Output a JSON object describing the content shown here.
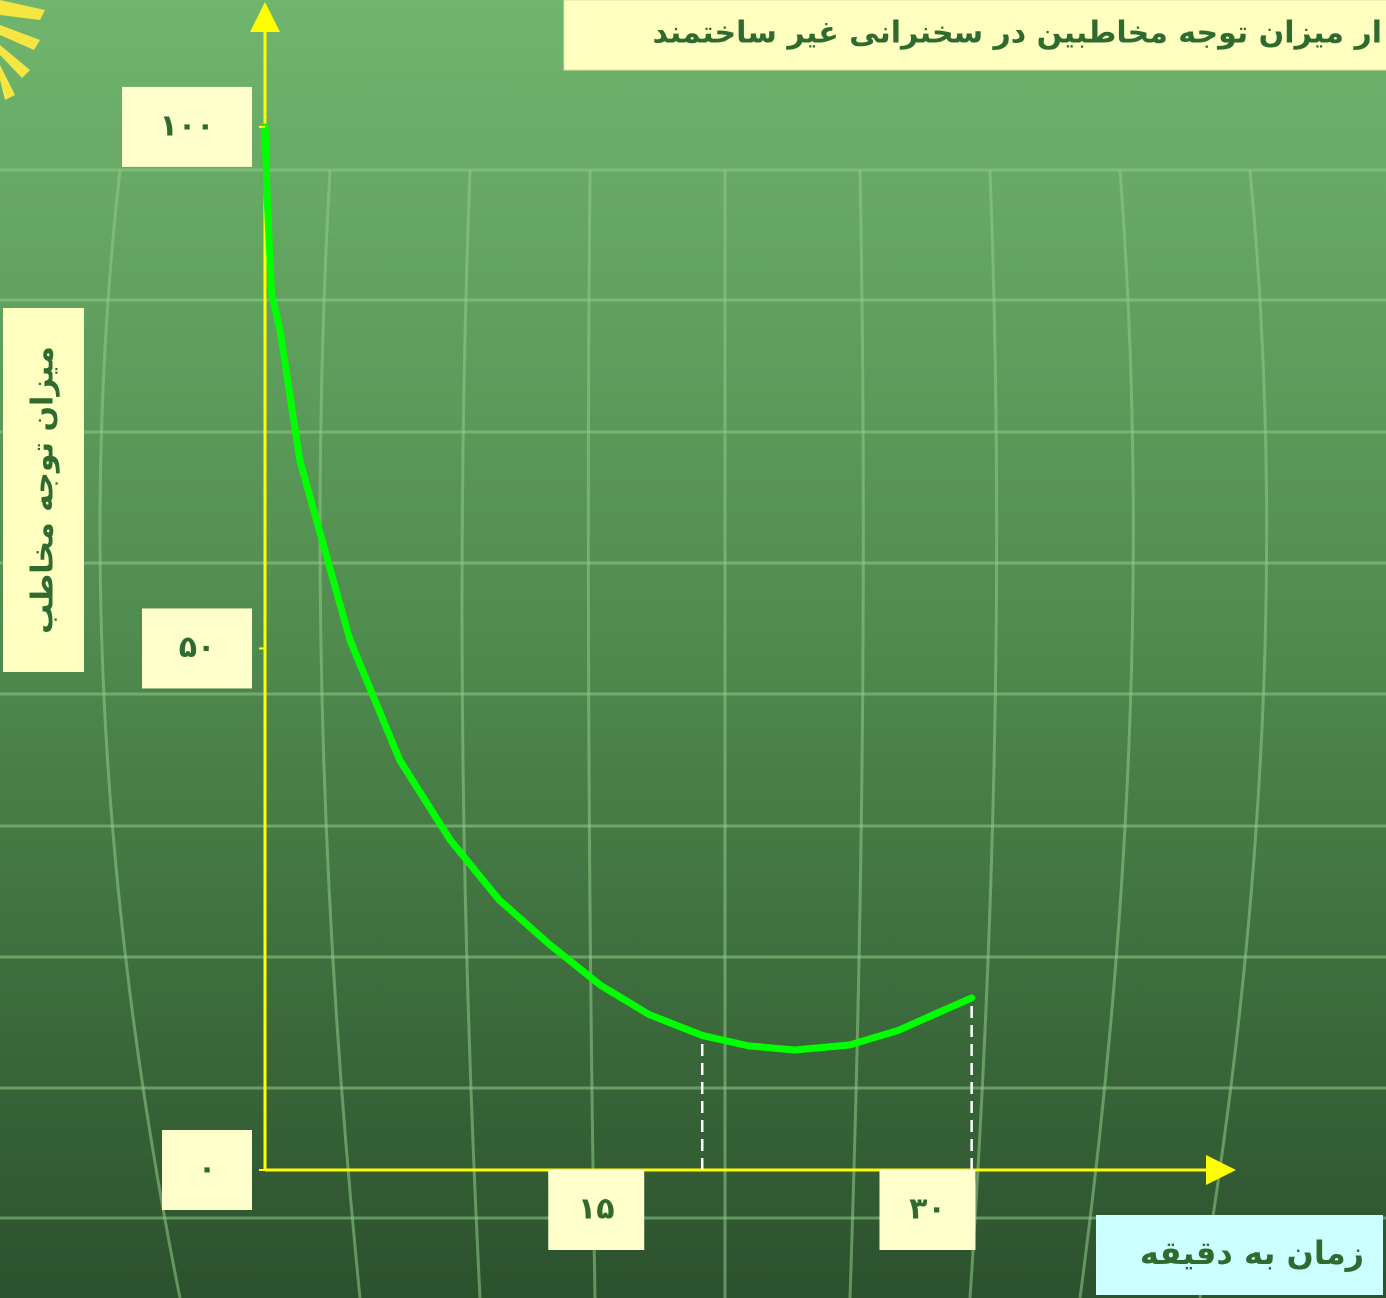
{
  "chart_data": {
    "type": "line",
    "title": "ار میزان توجه مخاطبین در سخنرانی غیر ساختمند",
    "xlabel": "زمان به دقیقه",
    "ylabel": "میزان توجه مخاطب",
    "x": [
      0,
      0.1,
      0.3,
      0.68,
      1.58,
      3.85,
      6.1,
      8.4,
      10.6,
      12.9,
      15.2,
      17.4,
      19.8,
      21.9,
      24,
      26.5,
      28.7,
      30.5,
      32
    ],
    "series": [
      {
        "color": "#00ff00",
        "values": [
          100,
          93,
          84,
          80.5,
          68,
          50.8,
          39.3,
          31.6,
          25.9,
          21.6,
          17.7,
          14.9,
          12.9,
          11.9,
          11.5,
          12,
          13.4,
          15.1,
          16.5
        ]
      }
    ],
    "xlim": [
      0,
      43.7
    ],
    "ylim": [
      0,
      111.4
    ],
    "xticks": [
      {
        "value": 15,
        "label": "۱۵"
      },
      {
        "value": 30,
        "label": "۳۰"
      }
    ],
    "yticks": [
      {
        "value": 0,
        "label": "۰"
      },
      {
        "value": 50,
        "label": "۵۰"
      },
      {
        "value": 100,
        "label": "۱۰۰"
      }
    ],
    "vlines": [
      19.8,
      32
    ],
    "axis_color": "#ffff00"
  }
}
